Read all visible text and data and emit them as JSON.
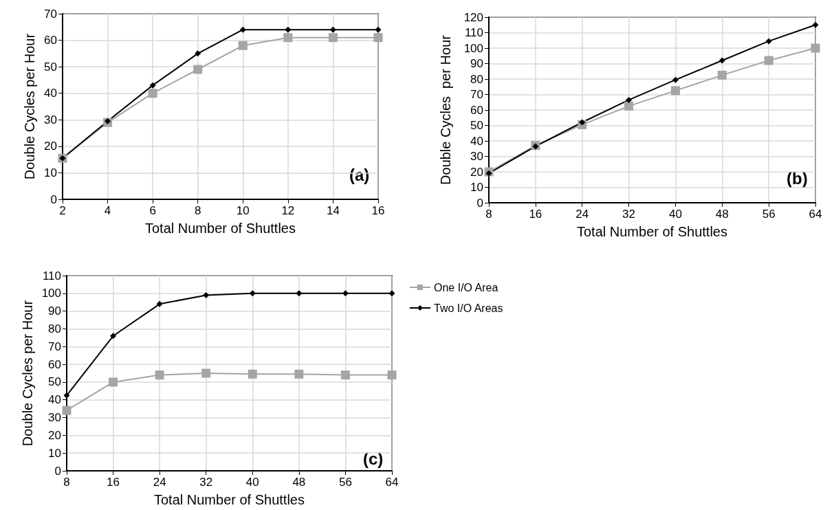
{
  "chart_data": [
    {
      "type": "line",
      "xlabel": "Total Number of Shuttles",
      "ylabel": "Double Cycles per Hour",
      "x": [
        2,
        4,
        6,
        8,
        10,
        12,
        14,
        16
      ],
      "xlim": [
        2,
        16
      ],
      "xticks": [
        2,
        4,
        6,
        8,
        10,
        12,
        14,
        16
      ],
      "ylim": [
        0,
        70
      ],
      "yticks": [
        0,
        10,
        20,
        30,
        40,
        50,
        60,
        70
      ],
      "grid": true,
      "annotations": [
        "(a)"
      ],
      "series": [
        {
          "color": "#a5a5a5",
          "marker": "square",
          "values": [
            15.5,
            29,
            40,
            49,
            58,
            61,
            61,
            61
          ]
        },
        {
          "color": "#000000",
          "marker": "diamond",
          "values": [
            15.5,
            29.5,
            43,
            55,
            64,
            64,
            64,
            64
          ]
        }
      ]
    },
    {
      "type": "line",
      "xlabel": "Total Number of Shuttles",
      "ylabel": "Double Cycles  per Hour",
      "x": [
        8,
        16,
        24,
        32,
        40,
        48,
        56,
        64
      ],
      "xlim": [
        8,
        64
      ],
      "xticks": [
        8,
        16,
        24,
        32,
        40,
        48,
        56,
        64
      ],
      "ylim": [
        0,
        120
      ],
      "yticks": [
        0,
        10,
        20,
        30,
        40,
        50,
        60,
        70,
        80,
        90,
        100,
        110,
        120
      ],
      "grid": true,
      "annotations": [
        "(b)"
      ],
      "series": [
        {
          "color": "#a5a5a5",
          "marker": "square",
          "values": [
            20,
            37,
            50.5,
            62.5,
            72.5,
            82.5,
            92,
            100
          ]
        },
        {
          "color": "#000000",
          "marker": "diamond",
          "values": [
            19,
            36.5,
            52,
            66.5,
            79.5,
            92,
            104.5,
            115
          ]
        }
      ]
    },
    {
      "type": "line",
      "xlabel": "Total Number of Shuttles",
      "ylabel": "Double Cycles per Hour",
      "x": [
        8,
        16,
        24,
        32,
        40,
        48,
        56,
        64
      ],
      "xlim": [
        8,
        64
      ],
      "xticks": [
        8,
        16,
        24,
        32,
        40,
        48,
        56,
        64
      ],
      "ylim": [
        0,
        110
      ],
      "yticks": [
        0,
        10,
        20,
        30,
        40,
        50,
        60,
        70,
        80,
        90,
        100,
        110
      ],
      "grid": true,
      "legend": "right",
      "annotations": [
        "(c)"
      ],
      "series": [
        {
          "name": "One I/O Area",
          "color": "#a5a5a5",
          "marker": "square",
          "values": [
            34,
            50,
            54,
            55,
            54.5,
            54.5,
            54,
            54
          ]
        },
        {
          "name": "Two I/O Areas",
          "color": "#000000",
          "marker": "diamond",
          "values": [
            42.5,
            76,
            94,
            99,
            100,
            100,
            100,
            100
          ]
        }
      ]
    }
  ]
}
